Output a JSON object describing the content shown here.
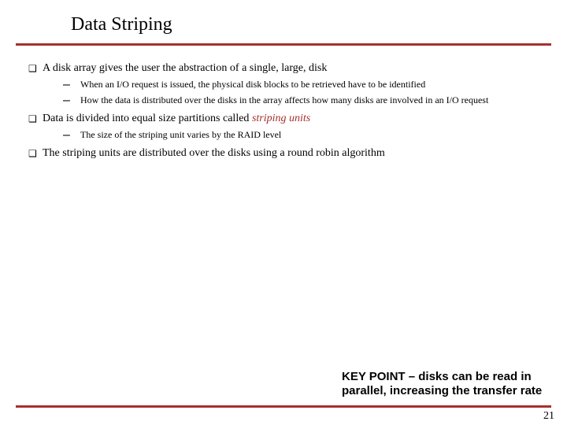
{
  "title": {
    "text": "Data Striping",
    "fontsize": 24,
    "color": "#000000"
  },
  "rule_color": "#a6302e",
  "body_color": "#000000",
  "accent_color": "#a6302e",
  "b1_fontsize": 14,
  "b2_fontsize": 12,
  "b1_marker": "❑",
  "b2_marker": "–",
  "bullets": [
    {
      "text": "A disk array gives the user the abstraction of a single, large, disk",
      "sub": [
        {
          "text": "When an I/O request is issued, the physical disk blocks to be retrieved have to be identified"
        },
        {
          "text": "How the data is distributed over the disks in the array affects how many disks are involved in an I/O request"
        }
      ]
    },
    {
      "text_pre": "Data is divided into equal size partitions called ",
      "text_em": "striping units",
      "sub": [
        {
          "text": "The size of the striping unit varies by the RAID level"
        }
      ]
    },
    {
      "text": "The striping units are distributed over the disks using a round robin algorithm",
      "sub": []
    }
  ],
  "keypoint": {
    "text": "KEY POINT – disks can be read in parallel, increasing the transfer rate",
    "fontsize": 15,
    "color": "#000000"
  },
  "pagenum": {
    "text": "21",
    "fontsize": 14,
    "color": "#000000"
  }
}
